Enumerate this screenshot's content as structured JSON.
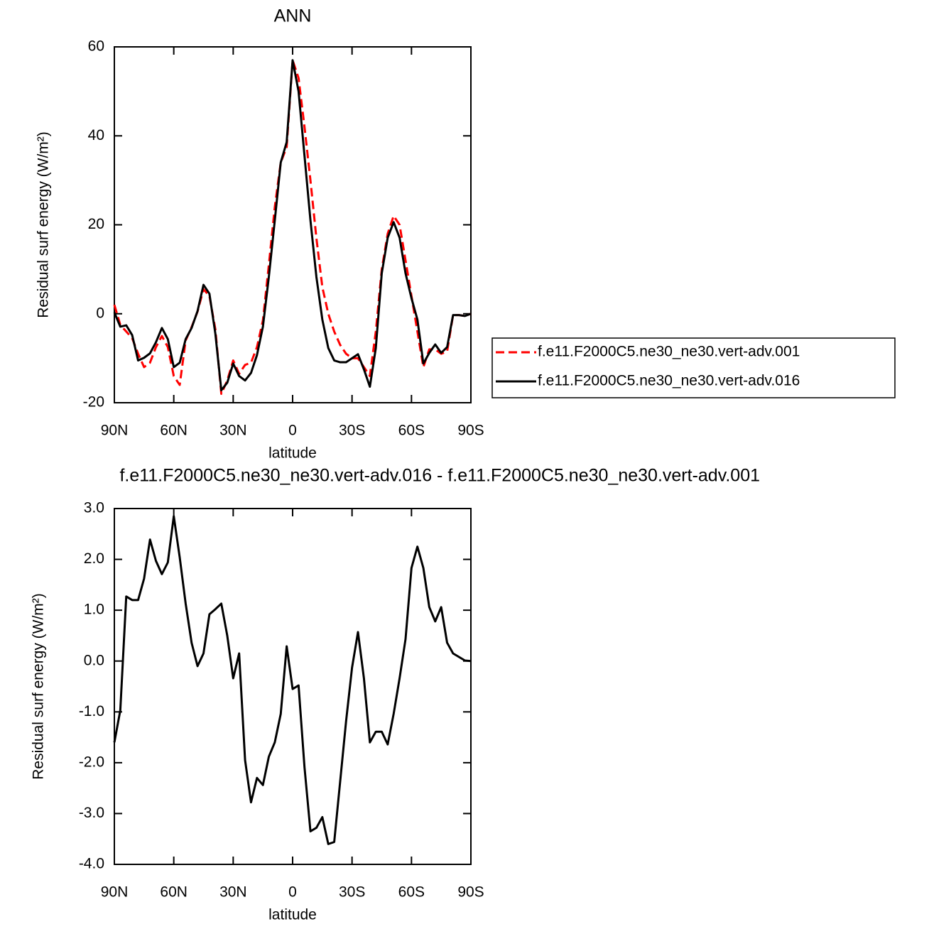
{
  "chart_data": [
    {
      "type": "line",
      "title": "ANN",
      "x": [
        90,
        87,
        84,
        81,
        78,
        75,
        72,
        69,
        66,
        63,
        60,
        57,
        54,
        51,
        48,
        45,
        42,
        39,
        36,
        33,
        30,
        27,
        24,
        21,
        18,
        15,
        12,
        9,
        6,
        3,
        0,
        -3,
        -6,
        -9,
        -12,
        -15,
        -18,
        -21,
        -24,
        -27,
        -30,
        -33,
        -36,
        -39,
        -42,
        -45,
        -48,
        -51,
        -54,
        -57,
        -60,
        -63,
        -66,
        -69,
        -72,
        -75,
        -78,
        -81,
        -84,
        -87,
        -90
      ],
      "series": [
        {
          "name": "f.e11.F2000C5.ne30_ne30.vert-adv.001",
          "color": "#ff0000",
          "linestyle": "dashed",
          "values": [
            2,
            -2.5,
            -4,
            -5.5,
            -9,
            -12,
            -11,
            -7.5,
            -5,
            -7.5,
            -14,
            -16,
            -6,
            -3,
            0.5,
            5.5,
            4,
            -3.5,
            -18,
            -15,
            -10.5,
            -13.5,
            -11.5,
            -11,
            -7.5,
            -1.5,
            11,
            24,
            34,
            37.5,
            57,
            53,
            42,
            30,
            17,
            6,
            0,
            -4,
            -7,
            -9,
            -10,
            -10,
            -12,
            -14,
            -4,
            10,
            18,
            22,
            20,
            12,
            4,
            -4,
            -12,
            -8,
            -8,
            -9,
            -8.5,
            -0.3,
            -0.3,
            -0.5,
            0
          ]
        },
        {
          "name": "f.e11.F2000C5.ne30_ne30.vert-adv.016",
          "color": "#000000",
          "linestyle": "solid",
          "values": [
            0.3,
            -2.9,
            -2.6,
            -4.8,
            -10.5,
            -9.9,
            -8.9,
            -6.4,
            -3.2,
            -5.7,
            -12,
            -11,
            -5.7,
            -3.2,
            0.6,
            6.5,
            4.5,
            -4.5,
            -17.2,
            -15.5,
            -11.2,
            -14,
            -15,
            -13.3,
            -9.3,
            -2.9,
            8.3,
            21,
            34,
            38.6,
            57,
            50,
            35.5,
            21,
            8.3,
            -1.3,
            -7.7,
            -10.5,
            -10.9,
            -10.9,
            -10,
            -9.1,
            -12.5,
            -16.4,
            -7.7,
            9.1,
            17.1,
            20.6,
            17.1,
            9.1,
            3.5,
            -1.3,
            -11.2,
            -8.8,
            -6.9,
            -8.8,
            -7.5,
            -0.3,
            -0.3,
            -0.5,
            0
          ]
        }
      ],
      "xlim": [
        90,
        -90
      ],
      "xticks": [
        {
          "value": 90,
          "label": "90N"
        },
        {
          "value": 60,
          "label": "60N"
        },
        {
          "value": 30,
          "label": "30N"
        },
        0,
        {
          "value": -30,
          "label": "30S"
        },
        {
          "value": -60,
          "label": "60S"
        },
        {
          "value": -90,
          "label": "90S"
        }
      ],
      "ylim": [
        -20,
        60
      ],
      "yticks": [
        -20,
        0,
        20,
        40,
        60
      ],
      "xlabel": "latitude",
      "ylabel": "Residual surf energy (W/m²)",
      "legend": "right"
    },
    {
      "type": "line",
      "title": "f.e11.F2000C5.ne30_ne30.vert-adv.016 - f.e11.F2000C5.ne30_ne30.vert-adv.001",
      "x": [
        90,
        87,
        84,
        81,
        78,
        75,
        72,
        69,
        66,
        63,
        60,
        57,
        54,
        51,
        48,
        45,
        42,
        39,
        36,
        33,
        30,
        27,
        24,
        21,
        18,
        15,
        12,
        9,
        6,
        3,
        0,
        -3,
        -6,
        -9,
        -12,
        -15,
        -18,
        -21,
        -24,
        -27,
        -30,
        -33,
        -36,
        -39,
        -42,
        -45,
        -48,
        -51,
        -54,
        -57,
        -60,
        -63,
        -66,
        -69,
        -72,
        -75,
        -78,
        -81,
        -84,
        -87,
        -90
      ],
      "series": [
        {
          "color": "#000000",
          "linestyle": "solid",
          "values": [
            -1.6,
            -0.97,
            1.27,
            1.2,
            1.2,
            1.62,
            2.39,
            1.97,
            1.71,
            1.94,
            2.85,
            2.04,
            1.13,
            0.36,
            -0.1,
            0.15,
            0.92,
            1.02,
            1.13,
            0.5,
            -0.34,
            0.15,
            -1.95,
            -2.78,
            -2.3,
            -2.44,
            -1.88,
            -1.6,
            -1.04,
            0.29,
            -0.55,
            -0.48,
            -2.09,
            -3.35,
            -3.28,
            -3.07,
            -3.6,
            -3.56,
            -2.37,
            -1.18,
            -0.13,
            0.57,
            -0.34,
            -1.6,
            -1.39,
            -1.39,
            -1.64,
            -1.04,
            -0.34,
            0.43,
            1.83,
            2.25,
            1.83,
            1.06,
            0.78,
            1.06,
            0.36,
            0.15,
            0.08,
            0.01,
            0
          ]
        }
      ],
      "xlim": [
        90,
        -90
      ],
      "xticks": [
        {
          "value": 90,
          "label": "90N"
        },
        {
          "value": 60,
          "label": "60N"
        },
        {
          "value": 30,
          "label": "30N"
        },
        0,
        {
          "value": -30,
          "label": "30S"
        },
        {
          "value": -60,
          "label": "60S"
        },
        {
          "value": -90,
          "label": "90S"
        }
      ],
      "ylim": [
        -4,
        3
      ],
      "yticks": [
        {
          "value": -4,
          "label": "-4.0"
        },
        {
          "value": -3,
          "label": "-3.0"
        },
        {
          "value": -2,
          "label": "-2.0"
        },
        {
          "value": -1,
          "label": "-1.0"
        },
        {
          "value": 0,
          "label": "0.0"
        },
        {
          "value": 1,
          "label": "1.0"
        },
        {
          "value": 2,
          "label": "2.0"
        },
        {
          "value": 3,
          "label": "3.0"
        }
      ],
      "xlabel": "latitude",
      "ylabel": "Residual surf energy (W/m²)"
    }
  ]
}
